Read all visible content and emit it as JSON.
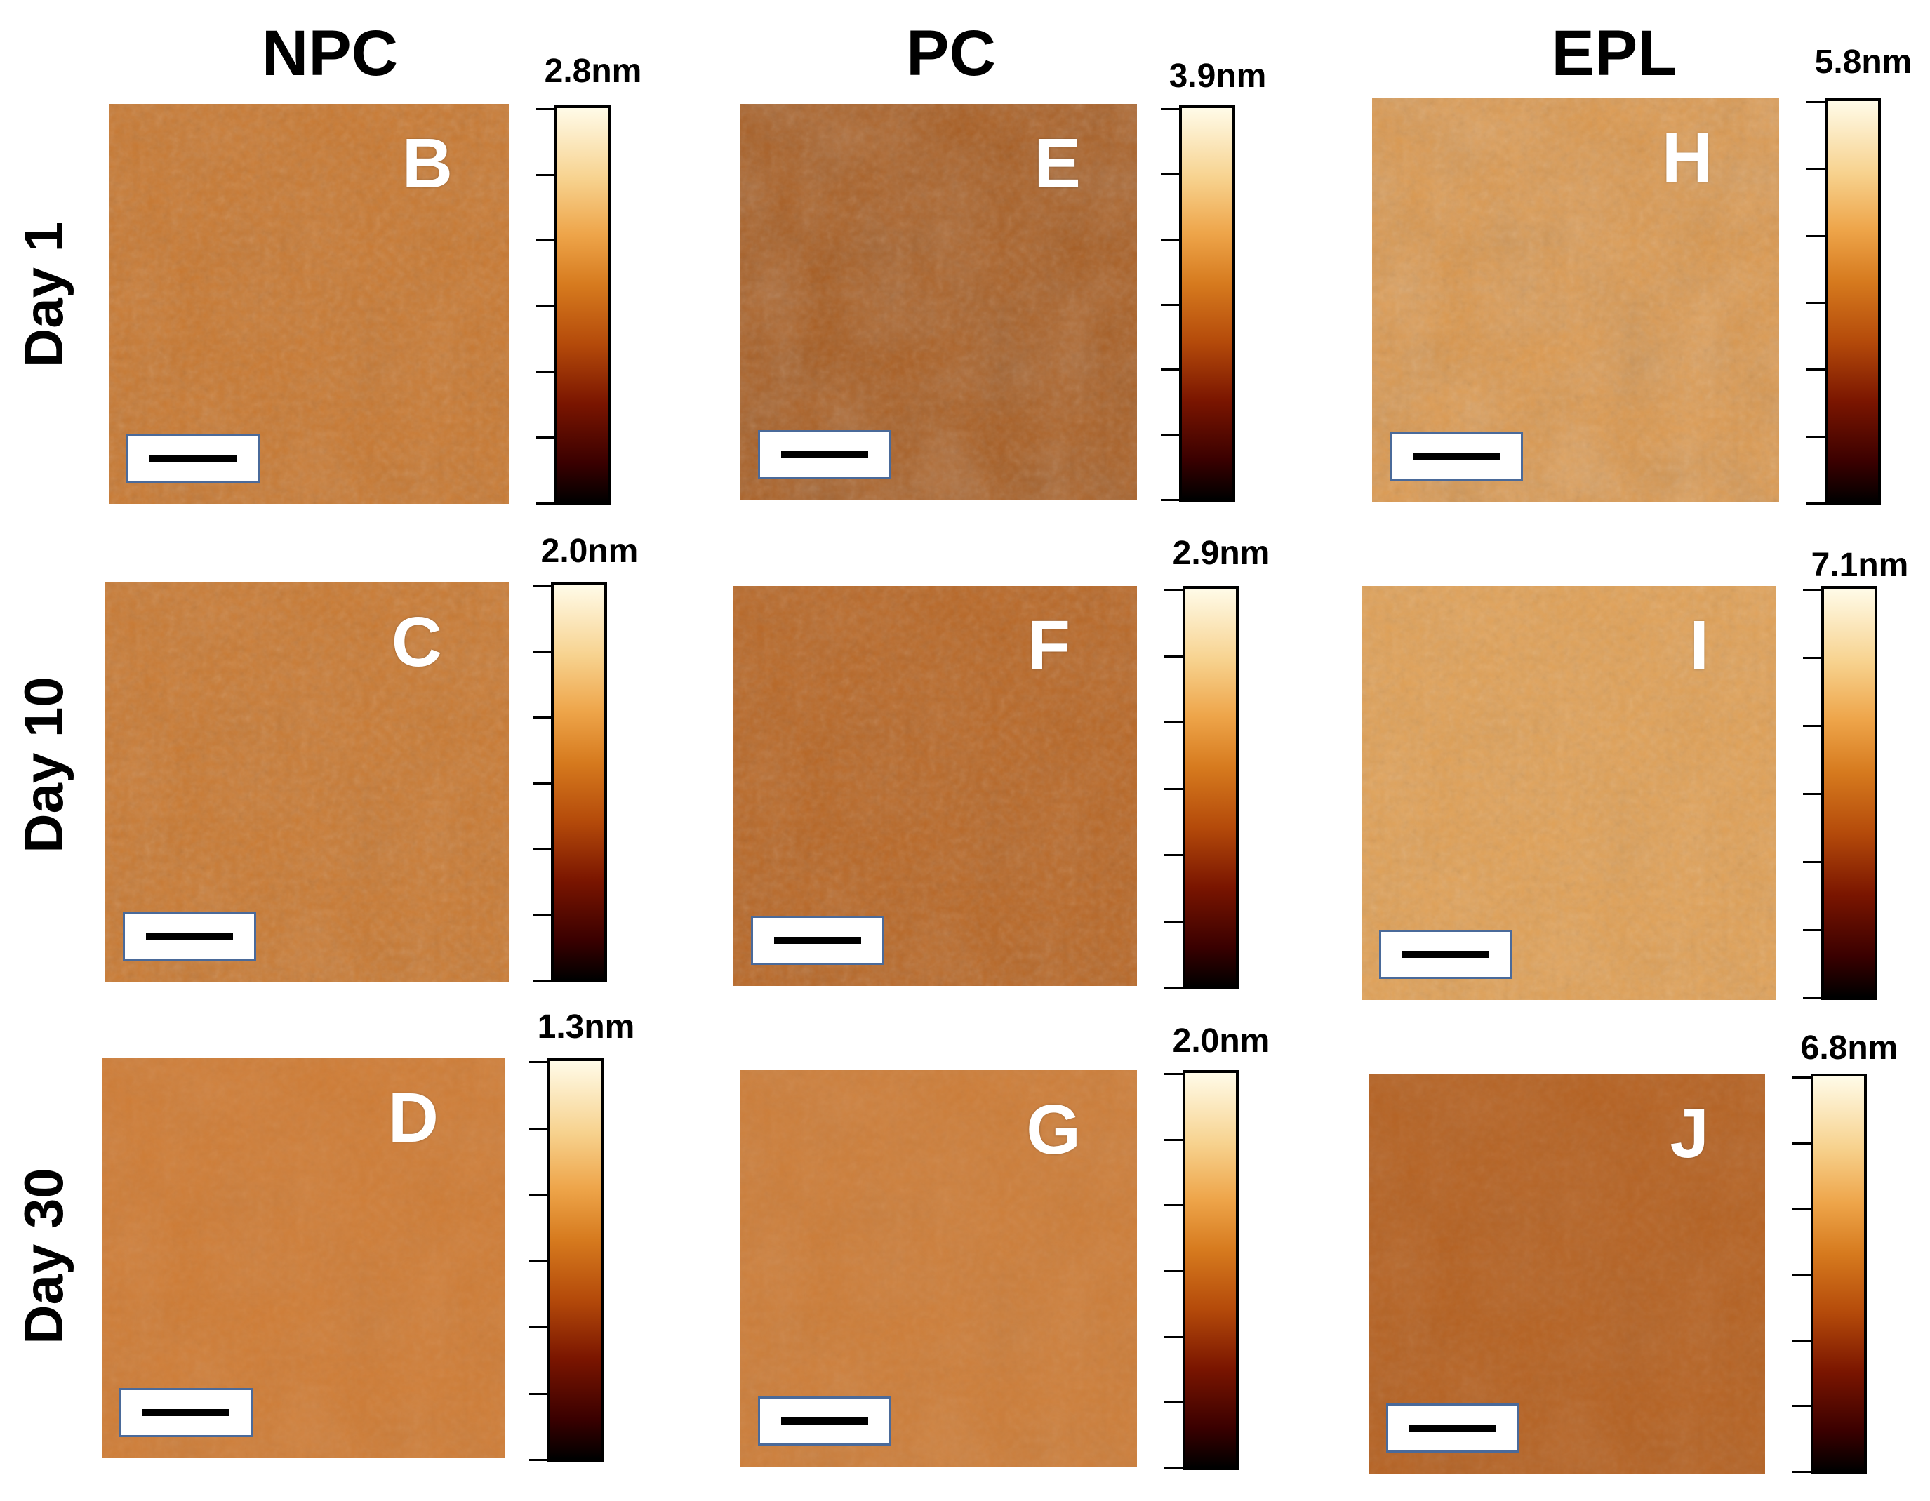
{
  "columns": [
    {
      "title": "NPC"
    },
    {
      "title": "PC"
    },
    {
      "title": "EPL"
    }
  ],
  "rows": [
    {
      "label": "Day 1"
    },
    {
      "label": "Day 10"
    },
    {
      "label": "Day 30"
    }
  ],
  "panels": [
    {
      "letter": "B",
      "scale_max": "2.8nm"
    },
    {
      "letter": "E",
      "scale_max": "3.9nm"
    },
    {
      "letter": "H",
      "scale_max": "5.8nm"
    },
    {
      "letter": "C",
      "scale_max": "2.0nm"
    },
    {
      "letter": "F",
      "scale_max": "2.9nm"
    },
    {
      "letter": "I",
      "scale_max": "7.1nm"
    },
    {
      "letter": "D",
      "scale_max": "1.3nm"
    },
    {
      "letter": "G",
      "scale_max": "2.0nm"
    },
    {
      "letter": "J",
      "scale_max": "6.8nm"
    }
  ],
  "colors": {
    "afm_base": [
      "#c8772e",
      "#a85a1c",
      "#dd974a",
      "#c9782f",
      "#b86522",
      "#e1a054",
      "#cf7b33",
      "#cd7c36",
      "#b5601f"
    ],
    "scalebar_border": "#4a6a9a"
  },
  "icons": {
    "scale_bar": "scale-bar-icon",
    "colorbar": "height-colorbar"
  }
}
